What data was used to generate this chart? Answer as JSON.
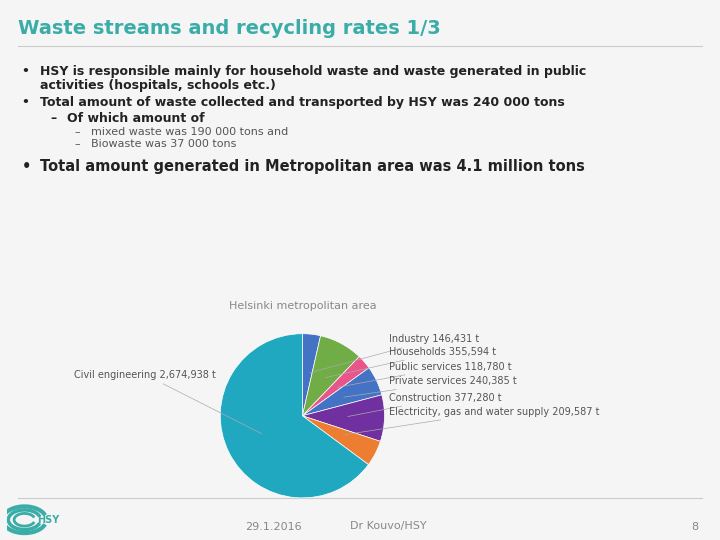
{
  "title": "Waste streams and recycling rates 1/3",
  "title_color": "#3aada8",
  "background_color": "#f5f5f5",
  "pie_title": "Helsinki metropolitan area",
  "pie_labels": [
    "Industry 146,431 t",
    "Households 355,594 t",
    "Public services 118,780 t",
    "Private services 240,385 t",
    "Construction 377,280 t",
    "Electricity, gas and water supply 209,587 t",
    "Civil engineering 2,674,938 t"
  ],
  "pie_values": [
    146431,
    355594,
    118780,
    240385,
    377280,
    209587,
    2674938
  ],
  "pie_colors": [
    "#4472c4",
    "#70ad47",
    "#e8558a",
    "#4472c4",
    "#7030a0",
    "#ed7d31",
    "#1fa8c0"
  ],
  "footer_date": "29.1.2016",
  "footer_author": "Dr Kouvo/HSY",
  "footer_page": "8",
  "text_color": "#222222",
  "sub_text_color": "#555555",
  "line_color": "#cccccc",
  "label_color": "#555555",
  "title_fontsize": 14,
  "body_fontsize": 9,
  "sub_fontsize": 8,
  "pie_label_fontsize": 7,
  "pie_title_fontsize": 8,
  "footer_fontsize": 8
}
